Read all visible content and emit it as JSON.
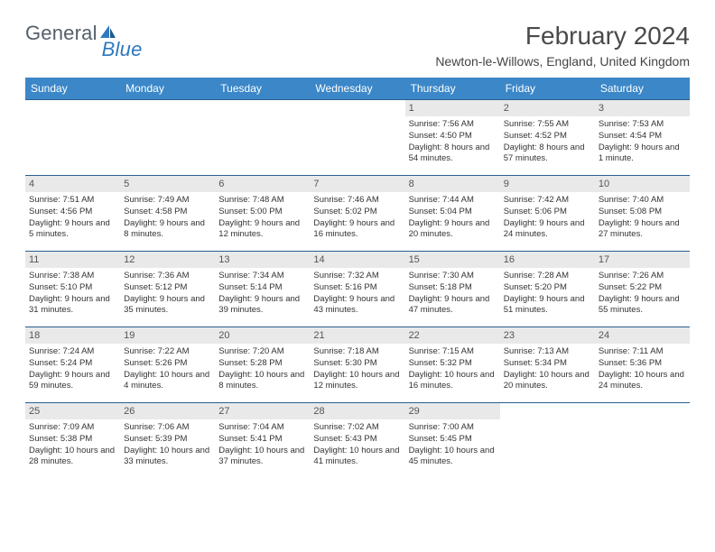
{
  "logo": {
    "text1": "General",
    "text2": "Blue"
  },
  "title": "February 2024",
  "subtitle": "Newton-le-Willows, England, United Kingdom",
  "colors": {
    "header_bg": "#3b87c8",
    "header_fg": "#ffffff",
    "row_border": "#2a5f8f",
    "daynum_bg": "#e9e9e9",
    "logo_gray": "#555f6b",
    "logo_blue": "#2f78bf"
  },
  "weekdays": [
    "Sunday",
    "Monday",
    "Tuesday",
    "Wednesday",
    "Thursday",
    "Friday",
    "Saturday"
  ],
  "weeks": [
    [
      null,
      null,
      null,
      null,
      {
        "n": "1",
        "sr": "7:56 AM",
        "ss": "4:50 PM",
        "dl": "8 hours and 54 minutes."
      },
      {
        "n": "2",
        "sr": "7:55 AM",
        "ss": "4:52 PM",
        "dl": "8 hours and 57 minutes."
      },
      {
        "n": "3",
        "sr": "7:53 AM",
        "ss": "4:54 PM",
        "dl": "9 hours and 1 minute."
      }
    ],
    [
      {
        "n": "4",
        "sr": "7:51 AM",
        "ss": "4:56 PM",
        "dl": "9 hours and 5 minutes."
      },
      {
        "n": "5",
        "sr": "7:49 AM",
        "ss": "4:58 PM",
        "dl": "9 hours and 8 minutes."
      },
      {
        "n": "6",
        "sr": "7:48 AM",
        "ss": "5:00 PM",
        "dl": "9 hours and 12 minutes."
      },
      {
        "n": "7",
        "sr": "7:46 AM",
        "ss": "5:02 PM",
        "dl": "9 hours and 16 minutes."
      },
      {
        "n": "8",
        "sr": "7:44 AM",
        "ss": "5:04 PM",
        "dl": "9 hours and 20 minutes."
      },
      {
        "n": "9",
        "sr": "7:42 AM",
        "ss": "5:06 PM",
        "dl": "9 hours and 24 minutes."
      },
      {
        "n": "10",
        "sr": "7:40 AM",
        "ss": "5:08 PM",
        "dl": "9 hours and 27 minutes."
      }
    ],
    [
      {
        "n": "11",
        "sr": "7:38 AM",
        "ss": "5:10 PM",
        "dl": "9 hours and 31 minutes."
      },
      {
        "n": "12",
        "sr": "7:36 AM",
        "ss": "5:12 PM",
        "dl": "9 hours and 35 minutes."
      },
      {
        "n": "13",
        "sr": "7:34 AM",
        "ss": "5:14 PM",
        "dl": "9 hours and 39 minutes."
      },
      {
        "n": "14",
        "sr": "7:32 AM",
        "ss": "5:16 PM",
        "dl": "9 hours and 43 minutes."
      },
      {
        "n": "15",
        "sr": "7:30 AM",
        "ss": "5:18 PM",
        "dl": "9 hours and 47 minutes."
      },
      {
        "n": "16",
        "sr": "7:28 AM",
        "ss": "5:20 PM",
        "dl": "9 hours and 51 minutes."
      },
      {
        "n": "17",
        "sr": "7:26 AM",
        "ss": "5:22 PM",
        "dl": "9 hours and 55 minutes."
      }
    ],
    [
      {
        "n": "18",
        "sr": "7:24 AM",
        "ss": "5:24 PM",
        "dl": "9 hours and 59 minutes."
      },
      {
        "n": "19",
        "sr": "7:22 AM",
        "ss": "5:26 PM",
        "dl": "10 hours and 4 minutes."
      },
      {
        "n": "20",
        "sr": "7:20 AM",
        "ss": "5:28 PM",
        "dl": "10 hours and 8 minutes."
      },
      {
        "n": "21",
        "sr": "7:18 AM",
        "ss": "5:30 PM",
        "dl": "10 hours and 12 minutes."
      },
      {
        "n": "22",
        "sr": "7:15 AM",
        "ss": "5:32 PM",
        "dl": "10 hours and 16 minutes."
      },
      {
        "n": "23",
        "sr": "7:13 AM",
        "ss": "5:34 PM",
        "dl": "10 hours and 20 minutes."
      },
      {
        "n": "24",
        "sr": "7:11 AM",
        "ss": "5:36 PM",
        "dl": "10 hours and 24 minutes."
      }
    ],
    [
      {
        "n": "25",
        "sr": "7:09 AM",
        "ss": "5:38 PM",
        "dl": "10 hours and 28 minutes."
      },
      {
        "n": "26",
        "sr": "7:06 AM",
        "ss": "5:39 PM",
        "dl": "10 hours and 33 minutes."
      },
      {
        "n": "27",
        "sr": "7:04 AM",
        "ss": "5:41 PM",
        "dl": "10 hours and 37 minutes."
      },
      {
        "n": "28",
        "sr": "7:02 AM",
        "ss": "5:43 PM",
        "dl": "10 hours and 41 minutes."
      },
      {
        "n": "29",
        "sr": "7:00 AM",
        "ss": "5:45 PM",
        "dl": "10 hours and 45 minutes."
      },
      null,
      null
    ]
  ],
  "labels": {
    "sunrise": "Sunrise:",
    "sunset": "Sunset:",
    "daylight": "Daylight:"
  }
}
